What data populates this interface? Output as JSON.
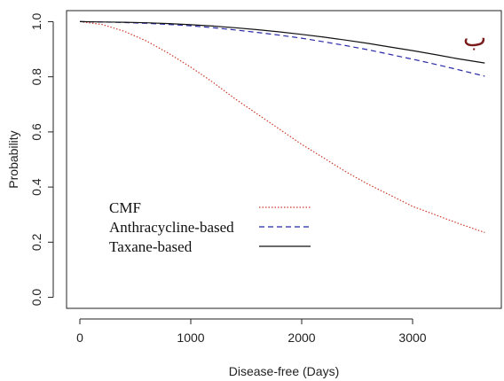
{
  "chart_data": {
    "type": "line",
    "title": "",
    "xlabel": "Disease-free (Days)",
    "ylabel": "Probability",
    "xlim": [
      -120,
      3800
    ],
    "ylim": [
      -0.04,
      1.04
    ],
    "xticks": [
      0,
      1000,
      2000,
      3000
    ],
    "yticks": [
      0.0,
      0.2,
      0.4,
      0.6,
      0.8,
      1.0
    ],
    "xtick_labels": [
      "0",
      "1000",
      "2000",
      "3000"
    ],
    "ytick_labels": [
      "0.0",
      "0.2",
      "0.4",
      "0.6",
      "0.8",
      "1.0"
    ],
    "corner_label": "ب",
    "legend_position": "lower-left",
    "series": [
      {
        "name": "CMF",
        "color": "#cc3a2a",
        "style": "dotted",
        "x": [
          0,
          200,
          400,
          600,
          800,
          1000,
          1200,
          1400,
          1600,
          1800,
          2000,
          2200,
          2400,
          2600,
          2800,
          3000,
          3200,
          3400,
          3650
        ],
        "y": [
          1.0,
          0.99,
          0.965,
          0.93,
          0.885,
          0.835,
          0.78,
          0.72,
          0.665,
          0.61,
          0.555,
          0.505,
          0.455,
          0.41,
          0.37,
          0.33,
          0.3,
          0.27,
          0.235
        ]
      },
      {
        "name": "Anthracycline-based",
        "color": "#2828a8",
        "style": "dashed",
        "x": [
          0,
          200,
          400,
          600,
          800,
          1000,
          1200,
          1400,
          1600,
          1800,
          2000,
          2200,
          2400,
          2600,
          2800,
          3000,
          3200,
          3400,
          3650
        ],
        "y": [
          1.0,
          0.999,
          0.997,
          0.994,
          0.99,
          0.985,
          0.978,
          0.97,
          0.961,
          0.951,
          0.94,
          0.927,
          0.913,
          0.898,
          0.881,
          0.864,
          0.846,
          0.827,
          0.802
        ]
      },
      {
        "name": "Taxane-based",
        "color": "#111111",
        "style": "solid",
        "x": [
          0,
          200,
          400,
          600,
          800,
          1000,
          1200,
          1400,
          1600,
          1800,
          2000,
          2200,
          2400,
          2600,
          2800,
          3000,
          3200,
          3400,
          3650
        ],
        "y": [
          1.0,
          0.999,
          0.998,
          0.996,
          0.993,
          0.989,
          0.984,
          0.978,
          0.971,
          0.963,
          0.954,
          0.944,
          0.933,
          0.921,
          0.908,
          0.895,
          0.881,
          0.866,
          0.85
        ]
      }
    ]
  }
}
